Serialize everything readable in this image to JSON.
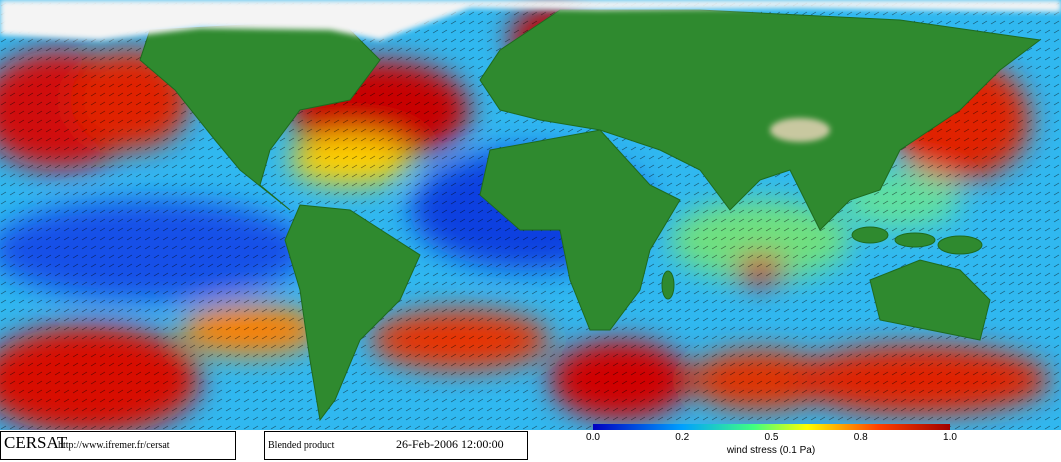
{
  "footer": {
    "logo": "CERSAT",
    "url": "http://www.ifremer.fr/cersat",
    "product": "Blended product",
    "datetime": "26-Feb-2006 12:00:00"
  },
  "colorbar": {
    "tick_labels": [
      "0.0",
      "0.2",
      "0.5",
      "0.8",
      "1.0"
    ],
    "label": "wind stress (0.1 Pa)"
  }
}
